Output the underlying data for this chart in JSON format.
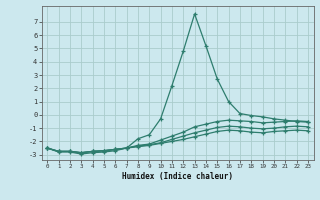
{
  "title": "",
  "xlabel": "Humidex (Indice chaleur)",
  "background_color": "#cce8ee",
  "grid_color": "#aacccc",
  "line_color": "#2e7d6e",
  "x": [
    0,
    1,
    2,
    3,
    4,
    5,
    6,
    7,
    8,
    9,
    10,
    11,
    12,
    13,
    14,
    15,
    16,
    17,
    18,
    19,
    20,
    21,
    22,
    23
  ],
  "series1": [
    -2.5,
    -2.8,
    -2.8,
    -2.95,
    -2.85,
    -2.8,
    -2.7,
    -2.5,
    -1.8,
    -1.5,
    -0.3,
    2.2,
    4.8,
    7.6,
    5.2,
    2.7,
    1.0,
    0.1,
    -0.05,
    -0.15,
    -0.3,
    -0.4,
    -0.5,
    -0.55
  ],
  "series2": [
    -2.5,
    -2.75,
    -2.75,
    -2.85,
    -2.75,
    -2.7,
    -2.6,
    -2.5,
    -2.3,
    -2.2,
    -1.9,
    -1.6,
    -1.3,
    -0.9,
    -0.7,
    -0.5,
    -0.4,
    -0.45,
    -0.5,
    -0.6,
    -0.55,
    -0.5,
    -0.45,
    -0.5
  ],
  "series3": [
    -2.5,
    -2.75,
    -2.75,
    -2.85,
    -2.75,
    -2.7,
    -2.6,
    -2.5,
    -2.35,
    -2.25,
    -2.1,
    -1.85,
    -1.6,
    -1.35,
    -1.15,
    -0.95,
    -0.85,
    -0.9,
    -1.0,
    -1.05,
    -1.0,
    -0.9,
    -0.85,
    -0.9
  ],
  "series4": [
    -2.5,
    -2.75,
    -2.75,
    -2.85,
    -2.75,
    -2.7,
    -2.6,
    -2.5,
    -2.4,
    -2.3,
    -2.15,
    -2.0,
    -1.85,
    -1.65,
    -1.45,
    -1.25,
    -1.15,
    -1.2,
    -1.3,
    -1.35,
    -1.25,
    -1.2,
    -1.15,
    -1.2
  ],
  "ylim": [
    -3.4,
    8.2
  ],
  "xlim": [
    -0.5,
    23.5
  ],
  "yticks": [
    -3,
    -2,
    -1,
    0,
    1,
    2,
    3,
    4,
    5,
    6,
    7
  ],
  "xticks": [
    0,
    1,
    2,
    3,
    4,
    5,
    6,
    7,
    8,
    9,
    10,
    11,
    12,
    13,
    14,
    15,
    16,
    17,
    18,
    19,
    20,
    21,
    22,
    23
  ]
}
